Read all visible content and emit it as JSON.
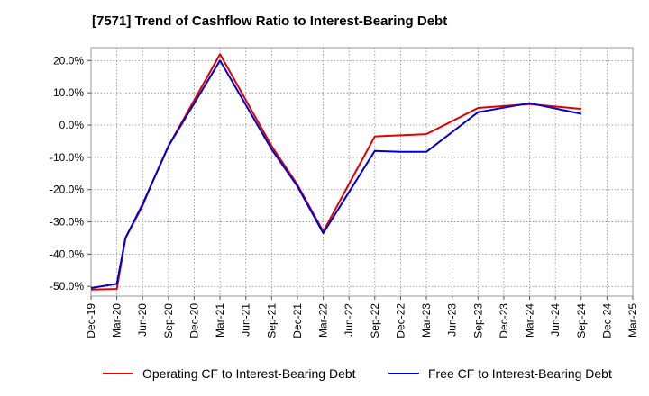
{
  "chart_data": {
    "type": "line",
    "title": "[7571]  Trend of Cashflow Ratio to Interest-Bearing Debt",
    "xlabel": "",
    "ylabel": "",
    "x_ticks": [
      "Dec-19",
      "Mar-20",
      "Jun-20",
      "Sep-20",
      "Dec-20",
      "Mar-21",
      "Jun-21",
      "Sep-21",
      "Dec-21",
      "Mar-22",
      "Jun-22",
      "Sep-22",
      "Dec-22",
      "Mar-23",
      "Jun-23",
      "Sep-23",
      "Dec-23",
      "Mar-24",
      "Jun-24",
      "Sep-24",
      "Dec-24",
      "Mar-25"
    ],
    "y_ticks": [
      "20.0%",
      "10.0%",
      "0.0%",
      "-10.0%",
      "-20.0%",
      "-30.0%",
      "-40.0%",
      "-50.0%"
    ],
    "y_tick_values": [
      20,
      10,
      0,
      -10,
      -20,
      -30,
      -40,
      -50
    ],
    "ylim": [
      -53,
      24
    ],
    "grid": true,
    "legend_position": "bottom",
    "series": [
      {
        "name": "Operating CF to Interest-Bearing Debt",
        "color": "#e00000",
        "x": [
          "Dec-19",
          "Mar-20",
          "Apr-20",
          "Jun-20",
          "Jul-20",
          "Sep-20",
          "Mar-21",
          "Sep-21",
          "Dec-21",
          "Mar-22",
          "Sep-22",
          "Mar-23",
          "Sep-23",
          "Mar-24",
          "Sep-24"
        ],
        "values": [
          -51.0,
          -50.8,
          -35.0,
          -25.0,
          -18.5,
          -6.5,
          22.0,
          -6.5,
          -18.5,
          -33.0,
          -3.5,
          -2.8,
          5.3,
          6.5,
          5.0
        ]
      },
      {
        "name": "Free CF to Interest-Bearing Debt",
        "color": "#0000cc",
        "x": [
          "Dec-19",
          "Mar-20",
          "Apr-20",
          "Jun-20",
          "Jul-20",
          "Sep-20",
          "Mar-21",
          "Sep-21",
          "Dec-21",
          "Mar-22",
          "Sep-22",
          "Dec-22",
          "Mar-23",
          "Sep-23",
          "Mar-24",
          "Sep-24"
        ],
        "values": [
          -50.5,
          -49.2,
          -35.0,
          -24.5,
          -18.5,
          -6.5,
          20.0,
          -7.5,
          -19.0,
          -33.5,
          -8.0,
          -8.3,
          -8.3,
          4.0,
          6.8,
          3.5
        ]
      }
    ]
  },
  "legend": {
    "item1": "Operating CF to Interest-Bearing Debt",
    "item2": "Free CF to Interest-Bearing Debt"
  }
}
